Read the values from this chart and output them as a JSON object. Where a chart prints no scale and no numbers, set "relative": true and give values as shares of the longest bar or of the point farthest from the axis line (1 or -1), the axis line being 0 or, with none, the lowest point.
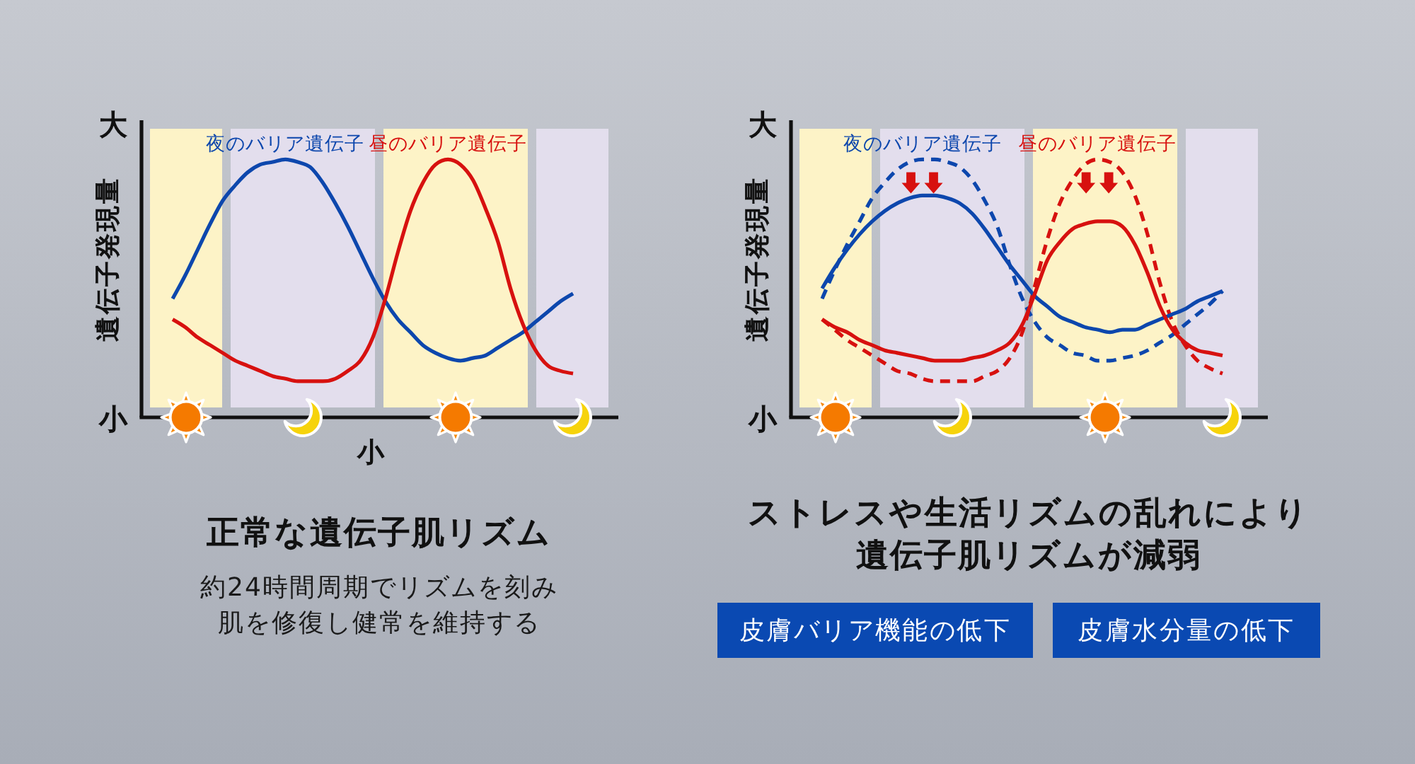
{
  "chart_data": [
    {
      "type": "line",
      "relative": true,
      "title": "正常な遺伝子肌リズム",
      "subtitle": "約24時間周期でリズムを刻み肌を修復し健常を維持する",
      "xlabel": "小",
      "ylabel": "遺伝子発現量",
      "annotations": [
        "大",
        "小"
      ],
      "categories": [
        null,
        null,
        null,
        null,
        null,
        null,
        null,
        null,
        null,
        null,
        null,
        null,
        null,
        null,
        null,
        null,
        null,
        null,
        null,
        null,
        null,
        null,
        null,
        null,
        null,
        null,
        null,
        null,
        null,
        null,
        null,
        null,
        null
      ],
      "series": [
        {
          "name": "夜のバリア遺伝子",
          "color": "#0d47ad",
          "values": [
            0.46,
            0.55,
            0.65,
            0.75,
            0.84,
            0.9,
            0.95,
            0.98,
            0.99,
            1.0,
            0.99,
            0.97,
            0.91,
            0.83,
            0.74,
            0.64,
            0.54,
            0.45,
            0.38,
            0.33,
            0.28,
            0.25,
            0.23,
            0.22,
            0.23,
            0.24,
            0.27,
            0.3,
            0.33,
            0.37,
            0.41,
            0.45,
            0.48
          ]
        },
        {
          "name": "昼のバリア遺伝子",
          "color": "#d7110f",
          "values": [
            0.38,
            0.35,
            0.31,
            0.28,
            0.25,
            0.22,
            0.2,
            0.18,
            0.16,
            0.15,
            0.14,
            0.14,
            0.14,
            0.15,
            0.18,
            0.22,
            0.31,
            0.46,
            0.64,
            0.8,
            0.91,
            0.98,
            1.0,
            0.98,
            0.92,
            0.81,
            0.68,
            0.5,
            0.36,
            0.26,
            0.2,
            0.18,
            0.17
          ]
        }
      ]
    },
    {
      "type": "line",
      "relative": true,
      "title": "ストレスや生活リズムの乱れにより遺伝子肌リズムが減弱",
      "ylabel": "遺伝子発現量",
      "annotations": [
        "大",
        "小",
        "皮膚バリア機能の低下",
        "皮膚水分量の低下"
      ],
      "categories": [
        null,
        null,
        null,
        null,
        null,
        null,
        null,
        null,
        null,
        null,
        null,
        null,
        null,
        null,
        null,
        null,
        null,
        null,
        null,
        null,
        null,
        null,
        null,
        null,
        null,
        null,
        null,
        null,
        null,
        null,
        null,
        null,
        null
      ],
      "series": [
        {
          "color": "#0d47ad",
          "line_style": "dashed",
          "values": [
            0.46,
            0.57,
            0.67,
            0.76,
            0.85,
            0.91,
            0.96,
            0.99,
            1.0,
            1.0,
            0.99,
            0.97,
            0.92,
            0.84,
            0.74,
            0.59,
            0.46,
            0.37,
            0.31,
            0.28,
            0.25,
            0.24,
            0.22,
            0.22,
            0.23,
            0.24,
            0.26,
            0.29,
            0.32,
            0.36,
            0.4,
            0.44,
            0.49
          ]
        },
        {
          "color": "#d7110f",
          "line_style": "dashed",
          "values": [
            0.38,
            0.34,
            0.3,
            0.27,
            0.24,
            0.21,
            0.18,
            0.17,
            0.15,
            0.14,
            0.14,
            0.14,
            0.14,
            0.16,
            0.18,
            0.23,
            0.33,
            0.51,
            0.69,
            0.83,
            0.92,
            0.98,
            1.0,
            0.99,
            0.95,
            0.86,
            0.71,
            0.52,
            0.37,
            0.28,
            0.22,
            0.19,
            0.17
          ]
        },
        {
          "name": "夜のバリア遺伝子",
          "color": "#0d47ad",
          "values": [
            0.5,
            0.58,
            0.65,
            0.71,
            0.76,
            0.8,
            0.83,
            0.85,
            0.86,
            0.86,
            0.85,
            0.83,
            0.79,
            0.73,
            0.66,
            0.59,
            0.53,
            0.47,
            0.43,
            0.39,
            0.37,
            0.35,
            0.34,
            0.33,
            0.34,
            0.34,
            0.36,
            0.38,
            0.4,
            0.42,
            0.45,
            0.47,
            0.49
          ]
        },
        {
          "name": "昼のバリア遺伝子",
          "color": "#d7110f",
          "values": [
            0.38,
            0.35,
            0.33,
            0.3,
            0.28,
            0.26,
            0.25,
            0.24,
            0.23,
            0.22,
            0.22,
            0.22,
            0.23,
            0.24,
            0.26,
            0.29,
            0.36,
            0.48,
            0.61,
            0.68,
            0.73,
            0.75,
            0.76,
            0.76,
            0.74,
            0.67,
            0.56,
            0.43,
            0.34,
            0.29,
            0.26,
            0.25,
            0.24
          ]
        }
      ]
    }
  ]
}
